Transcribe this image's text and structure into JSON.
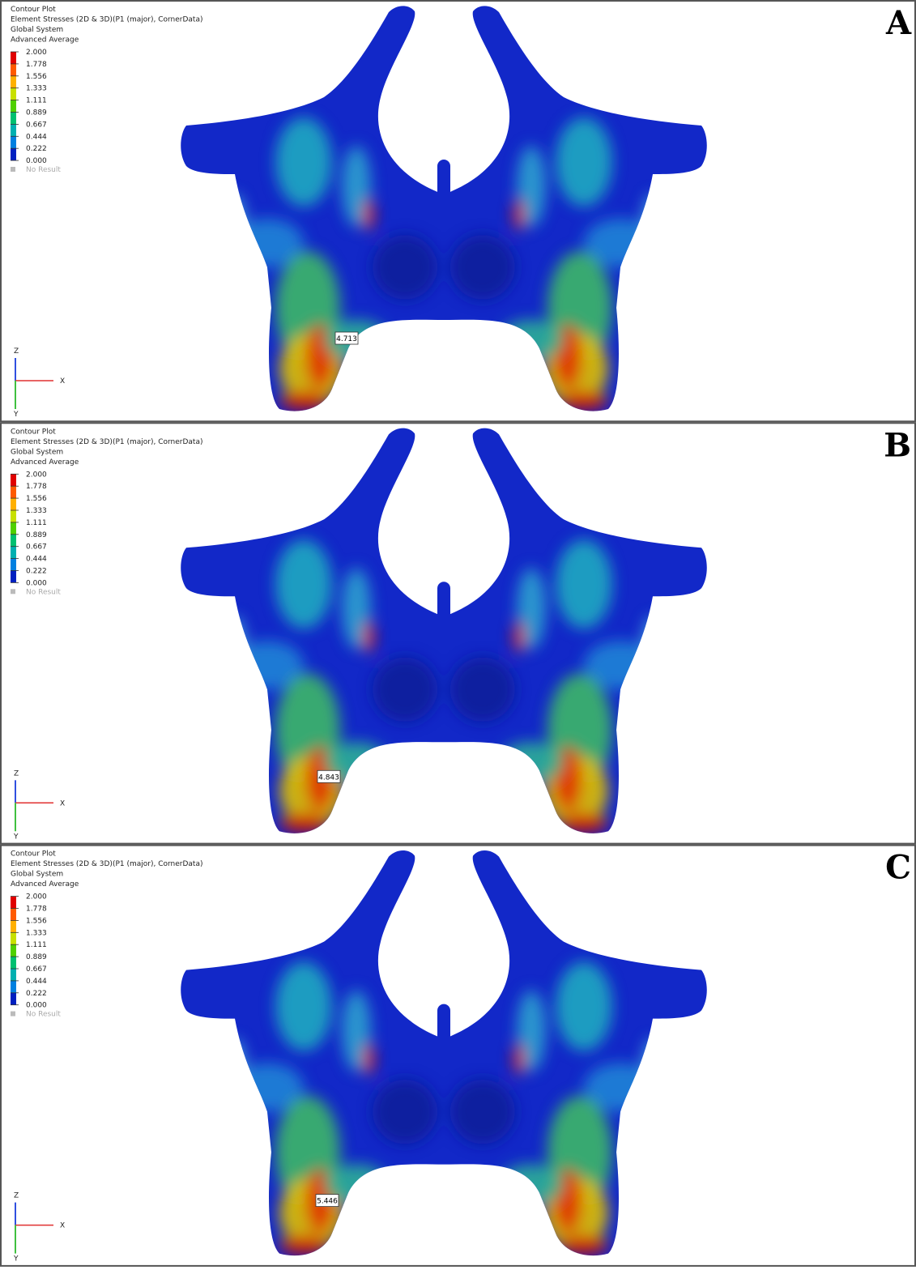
{
  "panels": [
    {
      "label": "A",
      "header": [
        "Contour Plot",
        "Element Stresses (2D & 3D)(P1 (major), CornerData)",
        "Global System",
        "Advanced Average"
      ],
      "legend": [
        "2.000",
        "1.778",
        "1.556",
        "1.333",
        "1.111",
        "0.889",
        "0.667",
        "0.444",
        "0.222",
        "0.000"
      ],
      "no_result": "No Result",
      "max_label": "4.713",
      "axes": {
        "z": "Z",
        "x": "X",
        "y": "Y"
      }
    },
    {
      "label": "B",
      "header": [
        "Contour Plot",
        "Element Stresses (2D & 3D)(P1 (major), CornerData)",
        "Global System",
        "Advanced Average"
      ],
      "legend": [
        "2.000",
        "1.778",
        "1.556",
        "1.333",
        "1.111",
        "0.889",
        "0.667",
        "0.444",
        "0.222",
        "0.000"
      ],
      "no_result": "No Result",
      "max_label": "4.843",
      "axes": {
        "z": "Z",
        "x": "X",
        "y": "Y"
      }
    },
    {
      "label": "C",
      "header": [
        "Contour Plot",
        "Element Stresses (2D & 3D)(P1 (major), CornerData)",
        "Global System",
        "Advanced Average"
      ],
      "legend": [
        "2.000",
        "1.778",
        "1.556",
        "1.333",
        "1.111",
        "0.889",
        "0.667",
        "0.444",
        "0.222",
        "0.000"
      ],
      "no_result": "No Result",
      "max_label": "5.446",
      "axes": {
        "z": "Z",
        "x": "X",
        "y": "Y"
      }
    }
  ]
}
